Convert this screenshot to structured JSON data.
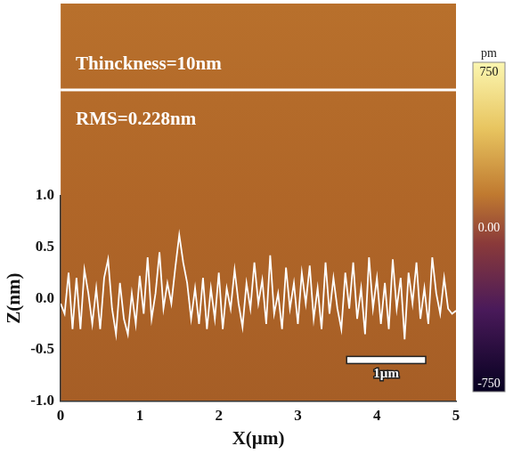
{
  "chart_data": {
    "type": "line",
    "x_label": "X(µm)",
    "y_label": "Z(nm)",
    "annotations": [
      "Thinckness=10nm",
      "RMS=0.228nm"
    ],
    "scale_bar": {
      "length": 1,
      "label": "1µm"
    },
    "colorbar": {
      "range": [
        -750,
        750
      ],
      "ticks": [
        750,
        {
          "value": 0,
          "label": "0.00"
        },
        -750
      ],
      "unit": "pm"
    },
    "xlim": [
      0,
      5
    ],
    "ylim": [
      -1,
      1
    ],
    "xticks": [
      0,
      1,
      2,
      3,
      4,
      5
    ],
    "yticks": [
      {
        "value": -1,
        "label": "-1.0"
      },
      {
        "value": -0.5,
        "label": "-0.5"
      },
      {
        "value": 0,
        "label": "0.0"
      },
      {
        "value": 0.5,
        "label": "0.5"
      },
      {
        "value": 1,
        "label": "1.0"
      }
    ],
    "grid": false,
    "color": "#ffffff",
    "x": [
      0.0,
      0.05,
      0.1,
      0.15,
      0.2,
      0.25,
      0.3,
      0.35,
      0.4,
      0.45,
      0.5,
      0.55,
      0.6,
      0.65,
      0.7,
      0.75,
      0.8,
      0.85,
      0.9,
      0.95,
      1.0,
      1.05,
      1.1,
      1.15,
      1.2,
      1.25,
      1.3,
      1.35,
      1.4,
      1.45,
      1.5,
      1.55,
      1.6,
      1.65,
      1.7,
      1.75,
      1.8,
      1.85,
      1.9,
      1.95,
      2.0,
      2.05,
      2.1,
      2.15,
      2.2,
      2.25,
      2.3,
      2.35,
      2.4,
      2.45,
      2.5,
      2.55,
      2.6,
      2.65,
      2.7,
      2.75,
      2.8,
      2.85,
      2.9,
      2.95,
      3.0,
      3.05,
      3.1,
      3.15,
      3.2,
      3.25,
      3.3,
      3.35,
      3.4,
      3.45,
      3.5,
      3.55,
      3.6,
      3.65,
      3.7,
      3.75,
      3.8,
      3.85,
      3.9,
      3.95,
      4.0,
      4.05,
      4.1,
      4.15,
      4.2,
      4.25,
      4.3,
      4.35,
      4.4,
      4.45,
      4.5,
      4.55,
      4.6,
      4.65,
      4.7,
      4.75,
      4.8,
      4.85,
      4.9,
      4.95,
      5.0
    ],
    "values": [
      -0.05,
      -0.15,
      0.25,
      -0.3,
      0.2,
      -0.3,
      0.28,
      0.05,
      -0.25,
      0.1,
      -0.3,
      0.2,
      0.38,
      -0.1,
      -0.35,
      0.15,
      -0.2,
      -0.35,
      0.05,
      -0.25,
      0.22,
      -0.15,
      0.4,
      -0.2,
      0.05,
      0.45,
      -0.1,
      0.15,
      -0.05,
      0.3,
      0.62,
      0.35,
      0.15,
      -0.2,
      0.1,
      -0.25,
      0.2,
      -0.3,
      0.1,
      -0.2,
      0.25,
      -0.3,
      0.1,
      -0.1,
      0.28,
      -0.05,
      -0.28,
      0.15,
      -0.1,
      0.35,
      -0.05,
      0.18,
      -0.25,
      0.42,
      -0.15,
      0.05,
      -0.3,
      0.3,
      -0.1,
      0.15,
      -0.25,
      0.25,
      -0.05,
      0.32,
      -0.2,
      0.1,
      -0.3,
      0.35,
      -0.15,
      0.2,
      -0.1,
      -0.3,
      0.25,
      -0.1,
      0.35,
      -0.2,
      0.1,
      -0.35,
      0.4,
      -0.1,
      0.2,
      -0.25,
      0.15,
      -0.3,
      0.38,
      -0.1,
      0.2,
      -0.4,
      0.25,
      -0.05,
      0.35,
      -0.2,
      0.1,
      -0.25,
      0.4,
      0.05,
      -0.15,
      0.2,
      -0.1,
      -0.15,
      -0.12
    ]
  }
}
